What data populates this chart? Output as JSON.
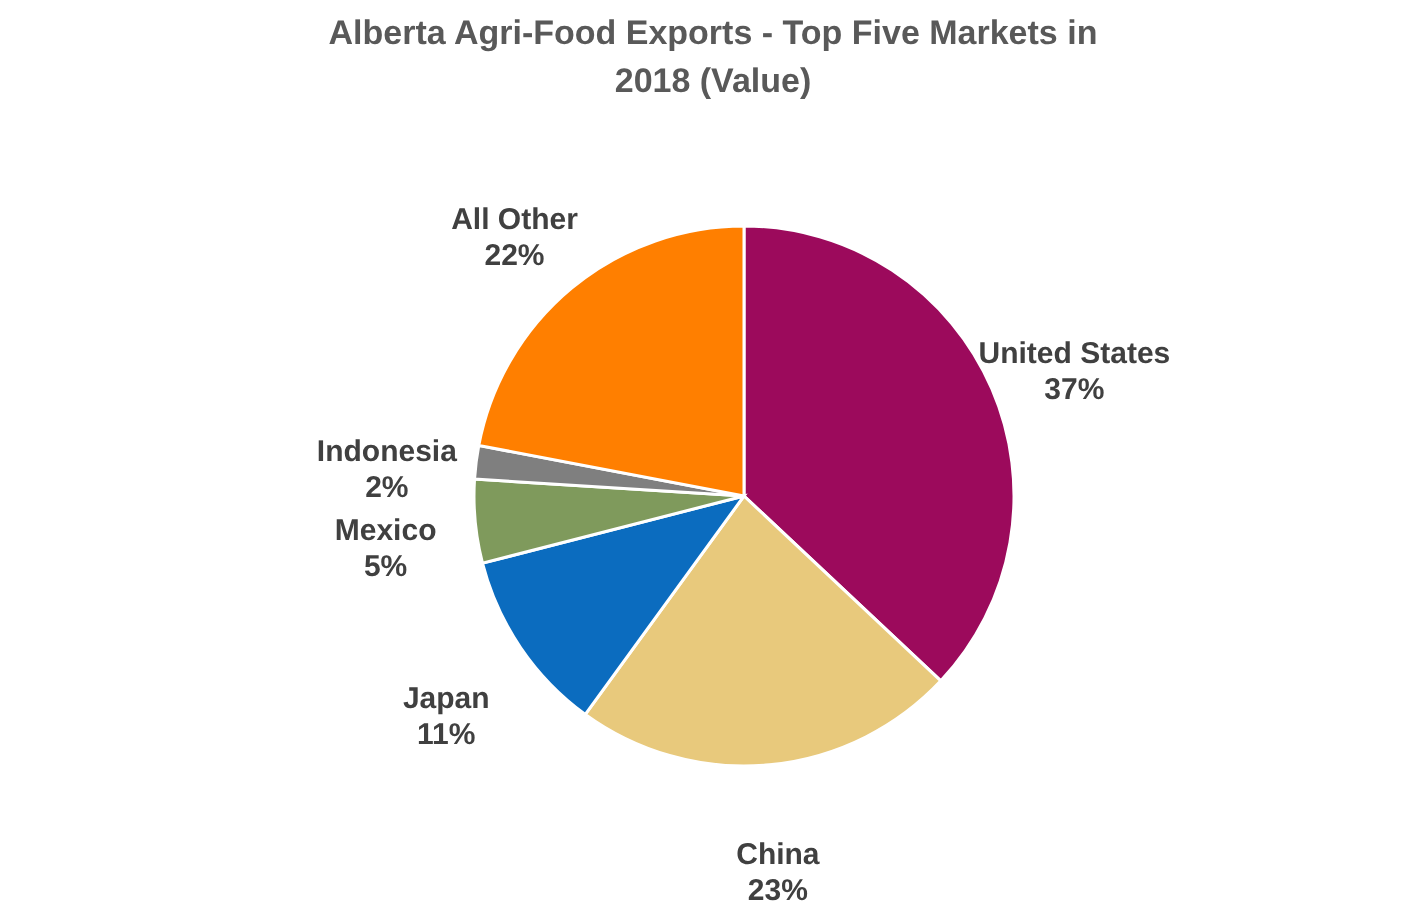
{
  "chart_data": {
    "type": "pie",
    "title": "Alberta Agri-Food Exports - Top Five Markets in 2018 (Value)",
    "categories": [
      "United States",
      "China",
      "Japan",
      "Mexico",
      "Indonesia",
      "All Other"
    ],
    "values": [
      37,
      23,
      11,
      5,
      2,
      22
    ],
    "value_labels": [
      "37%",
      "23%",
      "11%",
      "5%",
      "2%",
      "22%"
    ],
    "colors": [
      "#9c0a5c",
      "#e8c97c",
      "#0b6cbf",
      "#7f9a5c",
      "#7f7f7f",
      "#ff7f00"
    ],
    "legend": false
  }
}
